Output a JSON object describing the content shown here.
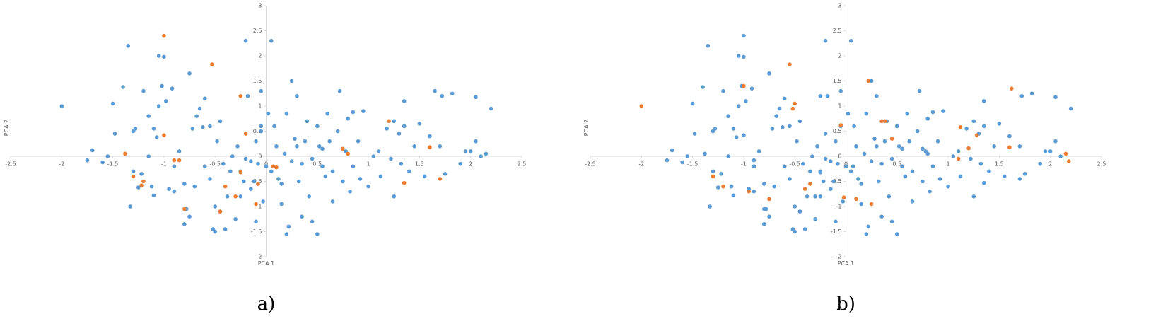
{
  "chart_data": [
    {
      "type": "scatter",
      "caption": "a)",
      "x_label": "PCA 1",
      "y_label": "PCA 2",
      "xlim": [
        -2.5,
        2.5
      ],
      "xticks": [
        -2.5,
        -2,
        -1.5,
        -1,
        -0.5,
        0,
        0.5,
        1,
        1.5,
        2,
        2.5
      ],
      "ylim": [
        -2,
        3
      ],
      "yticks": [
        -2,
        -1.5,
        -1,
        -0.5,
        0,
        0.5,
        1,
        1.5,
        2,
        2.5,
        3
      ],
      "series": [
        {
          "color": "#5b9bd5",
          "x": [
            -2.0,
            -1.7,
            -1.75,
            -1.6,
            -1.55,
            -1.5,
            -1.48,
            -1.4,
            -1.35,
            -1.3,
            -1.28,
            -1.25,
            -1.33,
            -1.2,
            -1.22,
            -1.15,
            -1.1,
            -1.15,
            -1.1,
            -1.07,
            -1.05,
            -1.0,
            -1.02,
            -0.98,
            -0.95,
            -0.9,
            -0.92,
            -0.9,
            -0.85,
            -0.8,
            -0.78,
            -0.8,
            -0.75,
            -0.75,
            -0.72,
            -0.7,
            -0.68,
            -0.65,
            -0.62,
            -0.6,
            -0.6,
            -0.55,
            -0.55,
            -0.52,
            -0.5,
            -0.5,
            -0.48,
            -0.45,
            -0.45,
            -0.42,
            -0.4,
            -0.38,
            -0.35,
            -0.33,
            -0.3,
            -0.28,
            -0.25,
            -0.25,
            -0.22,
            -0.2,
            -0.2,
            -0.18,
            -0.15,
            -0.15,
            -0.12,
            -0.1,
            -0.1,
            -0.08,
            -0.05,
            -0.05,
            -0.03,
            0.0,
            0.02,
            0.05,
            0.05,
            0.08,
            0.1,
            0.12,
            0.15,
            0.15,
            0.18,
            0.2,
            0.2,
            0.22,
            0.25,
            0.25,
            0.28,
            0.3,
            0.3,
            0.32,
            0.35,
            0.35,
            0.38,
            0.4,
            0.42,
            0.45,
            0.45,
            0.5,
            0.5,
            0.52,
            0.55,
            0.58,
            0.6,
            0.62,
            0.65,
            0.65,
            0.7,
            0.72,
            0.75,
            0.78,
            0.8,
            0.82,
            0.85,
            0.9,
            0.92,
            0.95,
            1.0,
            1.05,
            1.1,
            1.12,
            1.18,
            1.22,
            1.25,
            1.3,
            1.32,
            1.35,
            1.4,
            1.45,
            1.5,
            1.55,
            1.6,
            1.7,
            1.72,
            1.75,
            1.82,
            1.9,
            1.95,
            2.0,
            2.05,
            2.1,
            2.15,
            2.2,
            2.05,
            1.65,
            1.35,
            1.25,
            0.85,
            0.55,
            -0.05,
            -1.05,
            -1.12,
            -1.3
          ],
          "values": [
            1.0,
            0.12,
            -0.08,
            -0.12,
            0.0,
            1.05,
            0.45,
            1.38,
            2.2,
            0.5,
            0.55,
            -0.62,
            -1.0,
            1.3,
            -0.35,
            0.8,
            0.55,
            0.0,
            -0.78,
            0.38,
            2.0,
            1.98,
            1.4,
            1.1,
            -0.65,
            -0.7,
            1.35,
            -0.2,
            0.1,
            -0.55,
            -1.05,
            -1.35,
            1.65,
            -1.2,
            0.55,
            -0.6,
            0.8,
            0.95,
            0.58,
            1.15,
            -0.2,
            0.6,
            -0.45,
            -1.45,
            -1.5,
            -1.0,
            0.3,
            -1.1,
            0.7,
            -0.15,
            -1.45,
            -0.8,
            -0.3,
            0.0,
            -1.25,
            0.2,
            -0.8,
            -0.3,
            -0.5,
            2.3,
            -0.05,
            1.2,
            -0.1,
            -0.65,
            -0.5,
            0.3,
            -1.3,
            -0.15,
            1.3,
            0.6,
            -0.9,
            -0.2,
            0.85,
            2.3,
            -0.3,
            0.6,
            0.2,
            -0.45,
            -0.55,
            -0.95,
            0.05,
            0.85,
            -1.55,
            -1.4,
            1.5,
            -0.1,
            0.35,
            0.2,
            1.2,
            -0.5,
            -0.15,
            -1.2,
            0.3,
            0.7,
            -0.8,
            -0.05,
            -1.3,
            0.6,
            -1.55,
            0.2,
            -0.2,
            -0.4,
            0.85,
            0.3,
            -0.3,
            -0.9,
            0.5,
            1.3,
            -0.5,
            0.1,
            0.75,
            -0.7,
            -0.2,
            0.3,
            -0.45,
            0.9,
            -0.6,
            0.0,
            0.1,
            -0.4,
            0.55,
            -0.05,
            -0.8,
            0.45,
            -0.15,
            0.6,
            -0.3,
            0.2,
            0.65,
            -0.4,
            0.4,
            0.2,
            1.2,
            -0.35,
            1.25,
            -0.15,
            0.1,
            0.1,
            0.3,
            0.0,
            0.05,
            0.95,
            1.18,
            1.3,
            1.1,
            0.7,
            0.88,
            0.15,
            0.5,
            1.0,
            -0.6,
            -0.3
          ]
        },
        {
          "color": "#ed7d31",
          "x": [
            -1.0,
            -0.53,
            -0.25,
            -1.0,
            -0.2,
            -1.38,
            -0.9,
            -0.85,
            -1.3,
            -1.2,
            -1.22,
            -0.8,
            -0.45,
            -0.3,
            -0.25,
            -0.4,
            -0.1,
            -0.08,
            0.07,
            0.1,
            0.75,
            0.8,
            1.2,
            1.6,
            1.7,
            1.35
          ],
          "values": [
            2.4,
            1.83,
            1.2,
            0.42,
            0.45,
            0.05,
            -0.08,
            -0.08,
            -0.4,
            -0.5,
            -0.58,
            -1.05,
            -1.1,
            -0.8,
            -0.32,
            -0.6,
            -0.95,
            -0.55,
            -0.2,
            -0.22,
            0.15,
            0.05,
            0.7,
            0.18,
            -0.45,
            -0.53
          ]
        }
      ]
    },
    {
      "type": "scatter",
      "caption": "b)",
      "x_label": "PCA 1",
      "y_label": "PCA 2",
      "xlim": [
        -2.5,
        2.5
      ],
      "xticks": [
        -2.5,
        -2,
        -1.5,
        -1,
        -0.5,
        0,
        0.5,
        1,
        1.5,
        2,
        2.5
      ],
      "ylim": [
        -2,
        3
      ],
      "yticks": [
        -2,
        -1.5,
        -1,
        -0.5,
        0,
        0.5,
        1,
        1.5,
        2,
        2.5,
        3
      ],
      "series": [
        {
          "color": "#5b9bd5",
          "x": [
            -1.7,
            -1.75,
            -1.6,
            -1.55,
            -1.5,
            -1.48,
            -1.4,
            -1.35,
            -1.3,
            -1.28,
            -1.25,
            -1.33,
            -1.2,
            -1.22,
            -1.15,
            -1.1,
            -1.15,
            -1.1,
            -1.07,
            -1.05,
            -1.0,
            -1.02,
            -0.98,
            -0.95,
            -0.9,
            -0.92,
            -0.9,
            -0.85,
            -0.8,
            -0.78,
            -0.8,
            -0.75,
            -0.75,
            -0.72,
            -0.7,
            -0.68,
            -0.65,
            -0.62,
            -0.6,
            -0.6,
            -0.55,
            -0.55,
            -0.52,
            -0.5,
            -0.5,
            -0.48,
            -0.45,
            -0.45,
            -0.42,
            -0.4,
            -0.38,
            -0.35,
            -0.33,
            -0.3,
            -0.28,
            -0.25,
            -0.25,
            -0.22,
            -0.2,
            -0.2,
            -0.18,
            -0.15,
            -0.15,
            -0.12,
            -0.1,
            -0.1,
            -0.08,
            -0.05,
            -0.05,
            -0.03,
            0.0,
            0.02,
            0.05,
            0.05,
            0.08,
            0.1,
            0.12,
            0.15,
            0.15,
            0.18,
            0.2,
            0.2,
            0.22,
            0.25,
            0.25,
            0.28,
            0.3,
            0.3,
            0.32,
            0.35,
            0.35,
            0.38,
            0.4,
            0.42,
            0.45,
            0.45,
            0.5,
            0.5,
            0.52,
            0.55,
            0.58,
            0.6,
            0.62,
            0.65,
            0.65,
            0.7,
            0.72,
            0.75,
            0.78,
            0.8,
            0.82,
            0.85,
            0.9,
            0.92,
            0.95,
            1.0,
            1.05,
            1.1,
            1.12,
            1.18,
            1.22,
            1.25,
            1.3,
            1.32,
            1.35,
            1.4,
            1.45,
            1.5,
            1.55,
            1.6,
            1.7,
            1.72,
            1.75,
            1.82,
            1.9,
            1.95,
            2.0,
            2.05,
            2.1,
            2.2,
            2.05,
            1.35,
            1.25,
            0.85,
            0.55,
            -1.05,
            -1.12,
            -1.3,
            -1.0,
            -0.25,
            -1.0,
            -0.2,
            -1.38,
            -0.9,
            -0.8,
            -0.45,
            -0.3,
            -0.25,
            0.07,
            0.75,
            0.8,
            1.7,
            1.35
          ],
          "values": [
            0.12,
            -0.08,
            -0.12,
            0.0,
            1.05,
            0.45,
            1.38,
            2.2,
            0.5,
            0.55,
            -0.62,
            -1.0,
            1.3,
            -0.35,
            0.8,
            0.55,
            0.0,
            -0.78,
            0.38,
            2.0,
            1.98,
            1.4,
            1.1,
            -0.65,
            -0.7,
            1.35,
            -0.2,
            0.1,
            -0.55,
            -1.05,
            -1.35,
            1.65,
            -1.2,
            0.55,
            -0.6,
            0.8,
            0.95,
            0.58,
            1.15,
            -0.2,
            0.6,
            -0.45,
            -1.45,
            -1.5,
            -1.0,
            0.3,
            -1.1,
            0.7,
            -0.15,
            -1.45,
            -0.8,
            -0.3,
            0.0,
            -1.25,
            0.2,
            -0.8,
            -0.3,
            -0.5,
            2.3,
            -0.05,
            1.2,
            -0.1,
            -0.65,
            -0.5,
            0.3,
            -1.3,
            -0.15,
            1.3,
            0.6,
            -0.9,
            -0.2,
            0.85,
            2.3,
            -0.3,
            0.6,
            0.2,
            -0.45,
            -0.55,
            -0.95,
            0.05,
            0.85,
            -1.55,
            -1.4,
            1.5,
            -0.1,
            0.35,
            0.2,
            1.2,
            -0.5,
            -0.15,
            -1.2,
            0.3,
            0.7,
            -0.8,
            -0.05,
            -1.3,
            0.6,
            -1.55,
            0.2,
            -0.2,
            -0.4,
            0.85,
            0.3,
            -0.3,
            -0.9,
            0.5,
            1.3,
            -0.5,
            0.1,
            0.75,
            -0.7,
            -0.2,
            0.3,
            -0.45,
            0.9,
            -0.6,
            0.0,
            0.1,
            -0.4,
            0.55,
            -0.05,
            -0.8,
            0.45,
            -0.15,
            0.6,
            -0.3,
            0.2,
            0.65,
            -0.4,
            0.4,
            0.2,
            1.2,
            -0.35,
            1.25,
            -0.15,
            0.1,
            0.1,
            0.3,
            0.0,
            0.95,
            1.18,
            1.1,
            0.7,
            0.88,
            0.15,
            1.0,
            -0.6,
            -0.3,
            2.4,
            1.2,
            0.42,
            0.45,
            0.05,
            -0.08,
            -1.05,
            -1.1,
            -0.8,
            -0.32,
            -0.2,
            0.15,
            0.05,
            -0.45,
            -0.53
          ]
        },
        {
          "color": "#ed7d31",
          "x": [
            -2.0,
            -1.3,
            -1.2,
            -1.0,
            -0.95,
            -0.75,
            -0.55,
            -0.5,
            -0.52,
            -0.4,
            -0.35,
            -0.05,
            -0.02,
            0.1,
            0.22,
            0.25,
            0.35,
            0.38,
            0.45,
            1.1,
            1.12,
            1.2,
            1.28,
            1.62,
            1.6,
            2.15,
            2.18
          ],
          "values": [
            1.0,
            -0.4,
            -0.6,
            1.4,
            -0.7,
            -0.85,
            1.83,
            1.05,
            0.95,
            -0.65,
            -0.55,
            0.62,
            -0.82,
            -0.85,
            1.5,
            -0.95,
            0.7,
            0.7,
            0.35,
            -0.05,
            0.58,
            0.16,
            0.42,
            1.35,
            0.18,
            0.05,
            -0.1
          ]
        }
      ]
    }
  ]
}
